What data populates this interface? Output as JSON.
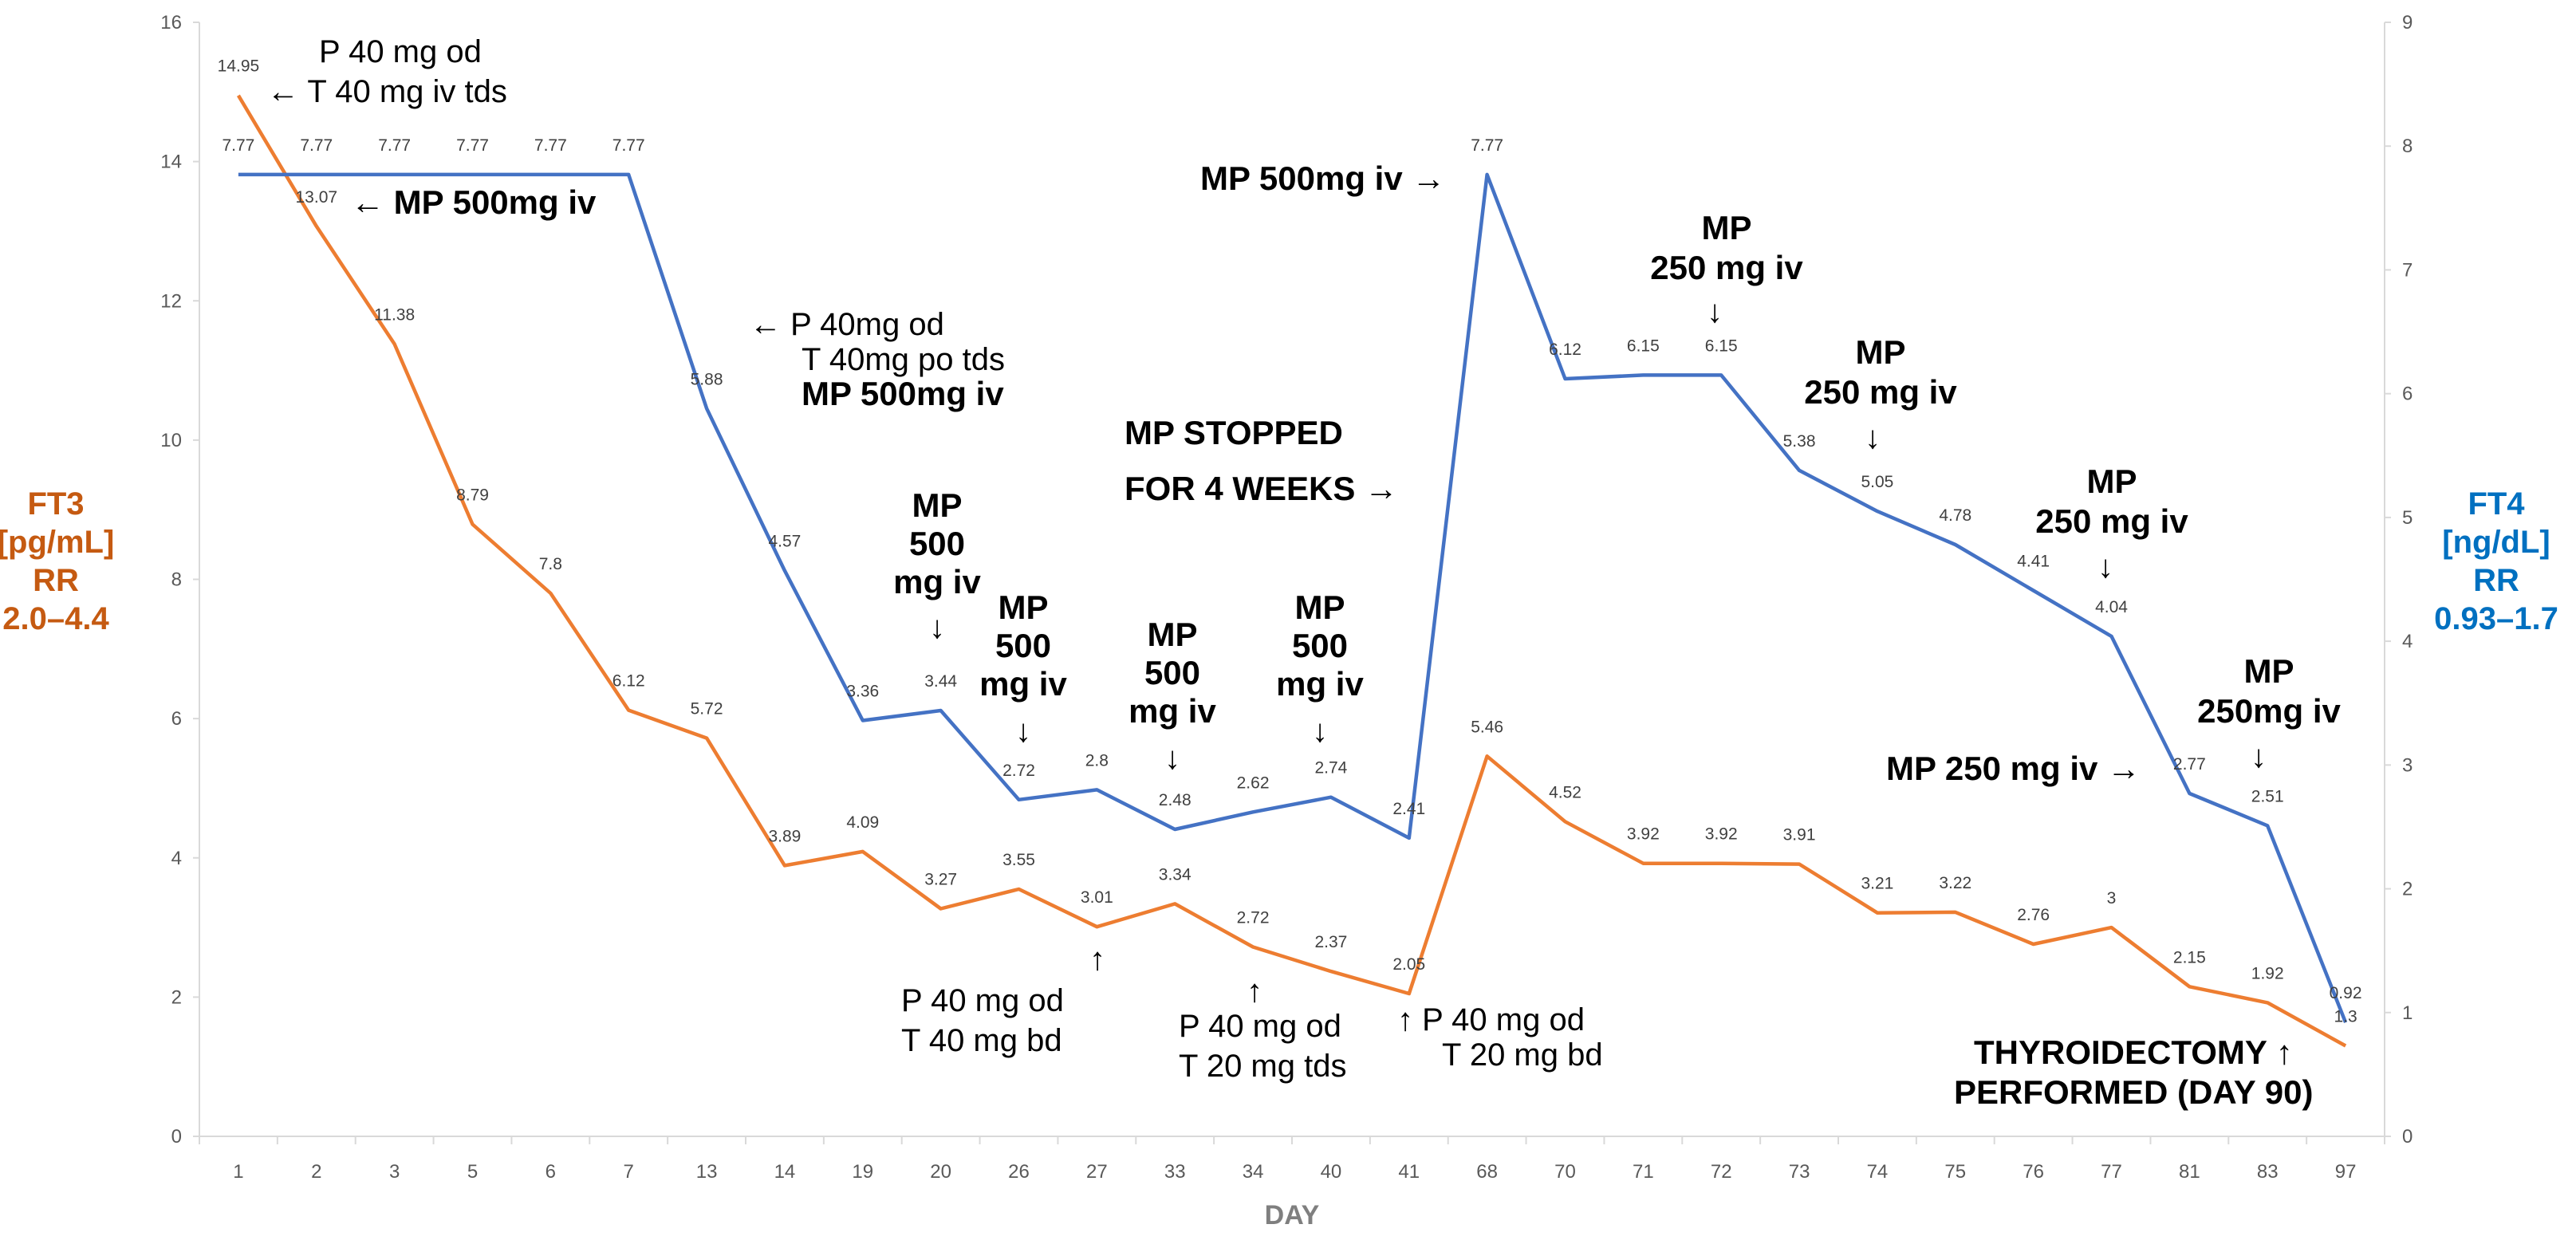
{
  "chart_data": {
    "type": "line",
    "categories": [
      "1",
      "2",
      "3",
      "5",
      "6",
      "7",
      "13",
      "14",
      "19",
      "20",
      "26",
      "27",
      "33",
      "34",
      "40",
      "41",
      "68",
      "70",
      "71",
      "72",
      "73",
      "74",
      "75",
      "76",
      "77",
      "81",
      "83",
      "97"
    ],
    "xlabel": "DAY",
    "y_left": {
      "label_lines": [
        "FT3",
        "[pg/mL]",
        "RR",
        "2.0–4.4"
      ],
      "ylim": [
        0,
        16
      ],
      "ticks": [
        "0",
        "2",
        "4",
        "6",
        "8",
        "10",
        "12",
        "14",
        "16"
      ]
    },
    "y_right": {
      "label_lines": [
        "FT4",
        "[ng/dL]",
        "RR",
        "0.93–1.7"
      ],
      "ylim": [
        0,
        9
      ],
      "ticks": [
        "0",
        "1",
        "2",
        "3",
        "4",
        "5",
        "6",
        "7",
        "8",
        "9"
      ]
    },
    "series": [
      {
        "name": "FT3",
        "axis": "left",
        "color": "#ed7d31",
        "values": [
          14.95,
          13.07,
          11.38,
          8.79,
          7.8,
          6.12,
          5.72,
          3.89,
          4.09,
          3.27,
          3.55,
          3.01,
          3.34,
          2.72,
          2.37,
          2.05,
          5.46,
          4.52,
          3.92,
          3.92,
          3.91,
          3.21,
          3.22,
          2.76,
          3,
          2.15,
          1.92,
          1.3
        ],
        "labels": [
          "14.95",
          "13.07",
          "11.38",
          "8.79",
          "7.8",
          "6.12",
          "5.72",
          "3.89",
          "4.09",
          "3.27",
          "3.55",
          "3.01",
          "3.34",
          "2.72",
          "2.37",
          "2.05",
          "5.46",
          "4.52",
          "3.92",
          "3.92",
          "3.91",
          "3.21",
          "3.22",
          "2.76",
          "3",
          "2.15",
          "1.92",
          "1.3"
        ]
      },
      {
        "name": "FT4",
        "axis": "right",
        "color": "#4472c4",
        "values": [
          7.77,
          7.77,
          7.77,
          7.77,
          7.77,
          7.77,
          5.88,
          4.57,
          3.36,
          3.44,
          2.72,
          2.8,
          2.48,
          2.62,
          2.74,
          2.41,
          7.77,
          6.12,
          6.15,
          6.15,
          5.38,
          5.05,
          4.78,
          4.41,
          4.04,
          2.77,
          2.51,
          0.92
        ],
        "labels": [
          "7.77",
          "7.77",
          "7.77",
          "7.77",
          "7.77",
          "7.77",
          "5.88",
          "4.57",
          "3.36",
          "3.44",
          "2.72",
          "2.8",
          "2.48",
          "2.62",
          "2.74",
          "2.41",
          "7.77",
          "6.12",
          "6.15",
          "6.15",
          "5.38",
          "5.05",
          "4.78",
          "4.41",
          "4.04",
          "2.77",
          "2.51",
          "0.92"
        ]
      }
    ],
    "annotations": [
      {
        "id": "a1",
        "lines": [
          "P 40 mg od",
          "← T 40 mg iv tds"
        ],
        "bold": false
      },
      {
        "id": "a2",
        "lines": [
          "← MP 500mg iv"
        ],
        "bold": true
      },
      {
        "id": "a3",
        "lines": [
          "← P 40mg od",
          "T 40mg po tds"
        ],
        "bold": false
      },
      {
        "id": "a3b",
        "lines": [
          "MP 500mg iv"
        ],
        "bold": true
      },
      {
        "id": "a4",
        "lines": [
          "MP",
          "500",
          "mg iv",
          "↓"
        ],
        "bold": true
      },
      {
        "id": "a5",
        "lines": [
          "MP",
          "500",
          "mg iv",
          "↓"
        ],
        "bold": true
      },
      {
        "id": "a6",
        "lines": [
          "MP",
          "500",
          "mg iv",
          "↓"
        ],
        "bold": true
      },
      {
        "id": "a7",
        "lines": [
          "MP",
          "500",
          "mg iv",
          "↓"
        ],
        "bold": true
      },
      {
        "id": "a8",
        "lines": [
          "MP STOPPED",
          "FOR 4 WEEKS →"
        ],
        "bold": true
      },
      {
        "id": "a9",
        "lines": [
          "MP 500mg iv →"
        ],
        "bold": true
      },
      {
        "id": "a10",
        "lines": [
          "MP",
          "250 mg iv",
          "↓"
        ],
        "bold": true
      },
      {
        "id": "a11",
        "lines": [
          "MP",
          "250 mg iv",
          "↓"
        ],
        "bold": true
      },
      {
        "id": "a12",
        "lines": [
          "MP",
          "250 mg iv",
          "↓"
        ],
        "bold": true
      },
      {
        "id": "a13",
        "lines": [
          "MP",
          "250mg iv",
          "↓"
        ],
        "bold": true
      },
      {
        "id": "a14",
        "lines": [
          "MP 250 mg iv →"
        ],
        "bold": true
      },
      {
        "id": "a15",
        "lines": [
          "↑",
          "P 40 mg od",
          "T 40 mg bd"
        ],
        "bold": false
      },
      {
        "id": "a16",
        "lines": [
          "↑",
          "P 40 mg od",
          "T 20 mg tds"
        ],
        "bold": false
      },
      {
        "id": "a17",
        "lines": [
          "↑  P 40 mg od",
          "T 20 mg bd"
        ],
        "bold": false
      },
      {
        "id": "a18",
        "lines": [
          "THYROIDECTOMY ↑",
          "PERFORMED (DAY 90)"
        ],
        "bold": true
      }
    ]
  }
}
